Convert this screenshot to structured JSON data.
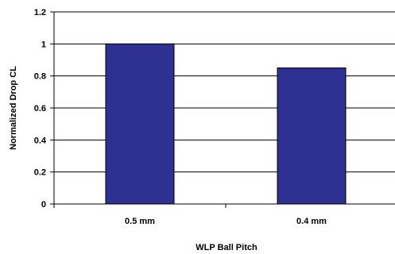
{
  "chart_data": {
    "type": "bar",
    "categories": [
      "0.5 mm",
      "0.4 mm"
    ],
    "values": [
      1.0,
      0.85
    ],
    "title": "",
    "xlabel": "WLP Ball Pitch",
    "ylabel": "Normalized Drop CL",
    "ylim": [
      0,
      1.2
    ],
    "yticks": [
      0,
      0.2,
      0.4,
      0.6,
      0.8,
      1,
      1.2
    ],
    "ytick_labels": [
      "0",
      "0.2",
      "0.4",
      "0.6",
      "0.8",
      "1",
      "1.2"
    ],
    "grid": true,
    "legend": "none",
    "colors": {
      "bar_fill": "#2e3192",
      "bar_stroke": "#000000",
      "grid": "#000000",
      "axis": "#000000",
      "background": "#ffffff"
    }
  }
}
